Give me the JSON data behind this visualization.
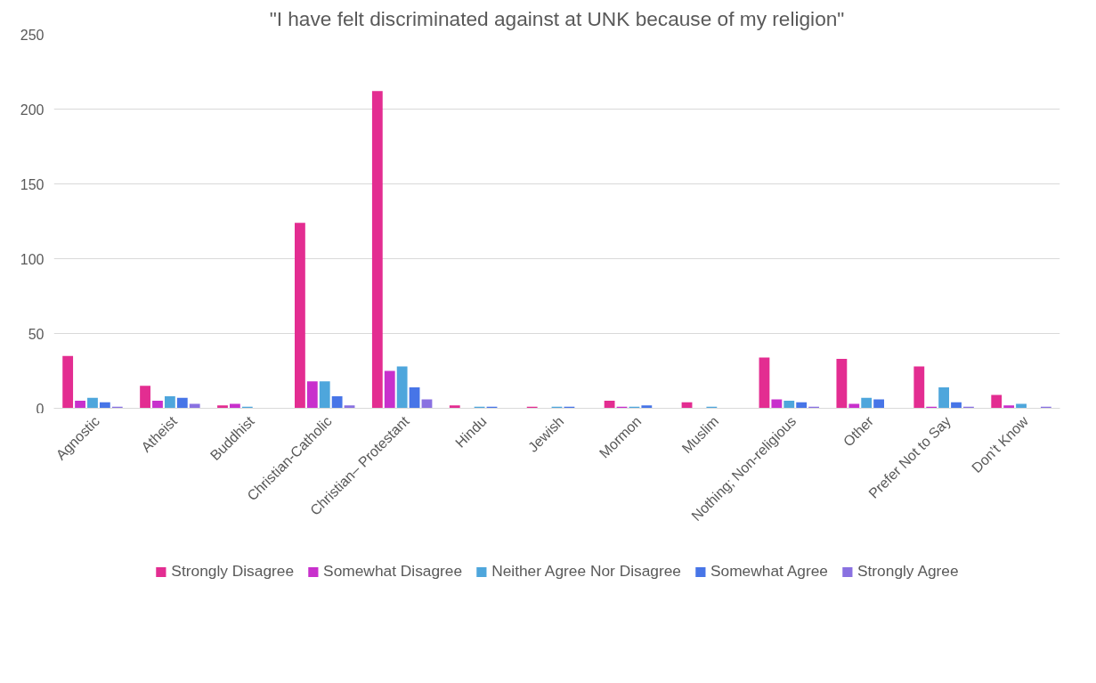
{
  "chart_data": {
    "type": "bar",
    "title": "\"I have felt discriminated against at UNK because of my religion\"",
    "categories": [
      "Agnostic",
      "Atheist",
      "Buddhist",
      "Christian-Catholic",
      "Christian– Protestant",
      "Hindu",
      "Jewish",
      "Mormon",
      "Muslim",
      "Nothing; Non-religious",
      "Other",
      "Prefer Not to Say",
      "Don’t Know"
    ],
    "series": [
      {
        "name": "Strongly Disagree",
        "color": "#e32d91",
        "values": [
          35,
          15,
          2,
          124,
          212,
          2,
          1,
          5,
          4,
          34,
          33,
          28,
          9
        ]
      },
      {
        "name": "Somewhat Disagree",
        "color": "#c830cc",
        "values": [
          5,
          5,
          3,
          18,
          25,
          0,
          0,
          1,
          0,
          6,
          3,
          1,
          2
        ]
      },
      {
        "name": "Neither Agree Nor Disagree",
        "color": "#4ea6dc",
        "values": [
          7,
          8,
          1,
          18,
          28,
          1,
          1,
          1,
          1,
          5,
          7,
          14,
          3
        ]
      },
      {
        "name": "Somewhat Agree",
        "color": "#4775e7",
        "values": [
          4,
          7,
          0,
          8,
          14,
          1,
          1,
          2,
          0,
          4,
          6,
          4,
          0
        ]
      },
      {
        "name": "Strongly Agree",
        "color": "#8971e1",
        "values": [
          1,
          3,
          0,
          2,
          6,
          0,
          0,
          0,
          0,
          1,
          0,
          1,
          1
        ]
      }
    ],
    "ylim": [
      0,
      250
    ],
    "yticks": [
      0,
      50,
      100,
      150,
      200,
      250
    ],
    "grid": "y",
    "legend": "bottom"
  }
}
